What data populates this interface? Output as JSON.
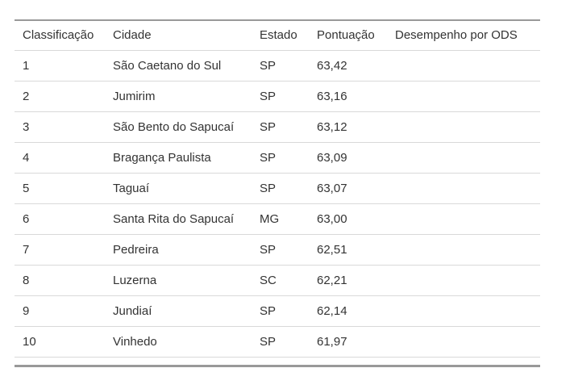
{
  "colors": {
    "background": "#ffffff",
    "text": "#333333",
    "border_heavy": "#999999",
    "border_light": "#d9d9d9"
  },
  "table": {
    "columns": [
      "Classificação",
      "Cidade",
      "Estado",
      "Pontuação",
      "Desempenho por ODS"
    ],
    "rows": [
      {
        "rank": "1",
        "city": "São Caetano do Sul",
        "state": "SP",
        "score": "63,42",
        "ods": ""
      },
      {
        "rank": "2",
        "city": "Jumirim",
        "state": "SP",
        "score": "63,16",
        "ods": ""
      },
      {
        "rank": "3",
        "city": "São Bento do Sapucaí",
        "state": "SP",
        "score": "63,12",
        "ods": ""
      },
      {
        "rank": "4",
        "city": "Bragança Paulista",
        "state": "SP",
        "score": "63,09",
        "ods": ""
      },
      {
        "rank": "5",
        "city": "Taguaí",
        "state": "SP",
        "score": "63,07",
        "ods": ""
      },
      {
        "rank": "6",
        "city": "Santa Rita do Sapucaí",
        "state": "MG",
        "score": "63,00",
        "ods": ""
      },
      {
        "rank": "7",
        "city": "Pedreira",
        "state": "SP",
        "score": "62,51",
        "ods": ""
      },
      {
        "rank": "8",
        "city": "Luzerna",
        "state": "SC",
        "score": "62,21",
        "ods": ""
      },
      {
        "rank": "9",
        "city": "Jundiaí",
        "state": "SP",
        "score": "62,14",
        "ods": ""
      },
      {
        "rank": "10",
        "city": "Vinhedo",
        "state": "SP",
        "score": "61,97",
        "ods": ""
      }
    ]
  }
}
